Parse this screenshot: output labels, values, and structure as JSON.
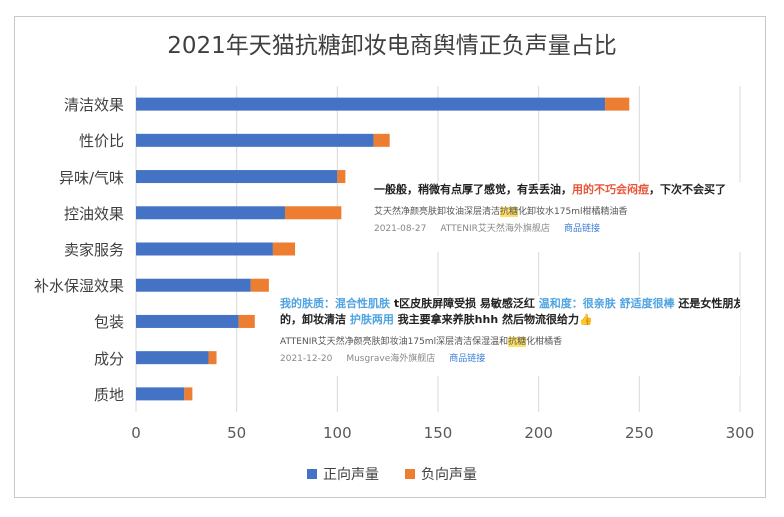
{
  "chart_data": {
    "type": "bar",
    "orientation": "horizontal",
    "stacked": true,
    "title": "2021年天猫抗糖卸妆电商舆情正负声量占比",
    "categories": [
      "清洁效果",
      "性价比",
      "异味/气味",
      "控油效果",
      "卖家服务",
      "补水保湿效果",
      "包装",
      "成分",
      "质地"
    ],
    "series": [
      {
        "name": "正向声量",
        "color": "#4472C4",
        "values": [
          233,
          118,
          100,
          74,
          68,
          57,
          51,
          36,
          24
        ]
      },
      {
        "name": "负向声量",
        "color": "#ED7D31",
        "values": [
          12,
          8,
          4,
          28,
          11,
          9,
          8,
          4,
          4
        ]
      }
    ],
    "xlim": [
      0,
      300
    ],
    "xticks": [
      "0",
      "50",
      "100",
      "150",
      "200",
      "250",
      "300"
    ],
    "grid": true,
    "legend_position": "bottom"
  },
  "comments": [
    {
      "text_a": "一般般，稍微有点厚了感觉，有丢丢油，",
      "text_red": "用的不巧会闷痘",
      "text_b": "，下次不会买了",
      "product_a": "艾天然净颜亮肤卸妆油深层清洁",
      "product_hl": "抗糖",
      "product_b": "化卸妆水175ml柑橘精油香",
      "date": "2021-08-27",
      "shop": "ATTENIR艾天然海外旗舰店",
      "link": "商品链接"
    },
    {
      "line1_blue_a": "我的肤质：混合性肌肤",
      "line1_a": " t区皮肤屏障受损 易敏感泛红 ",
      "line1_blue_b": "温和度：很亲肤 舒适度很棒",
      "line1_b": " 还是女性朋友推荐",
      "line2_a": "的，卸妆清洁 ",
      "line2_blue": "护肤两用",
      "line2_b": " 我主要拿来养肤hhh 然后物流很给力👍",
      "product_a": "ATTENIR艾天然净颜亮肤卸妆油175ml深层清洁保湿温和",
      "product_hl": "抗糖",
      "product_b": "化柑橘香",
      "date": "2021-12-20",
      "shop": "Musgrave海外旗舰店",
      "link": "商品链接"
    }
  ]
}
